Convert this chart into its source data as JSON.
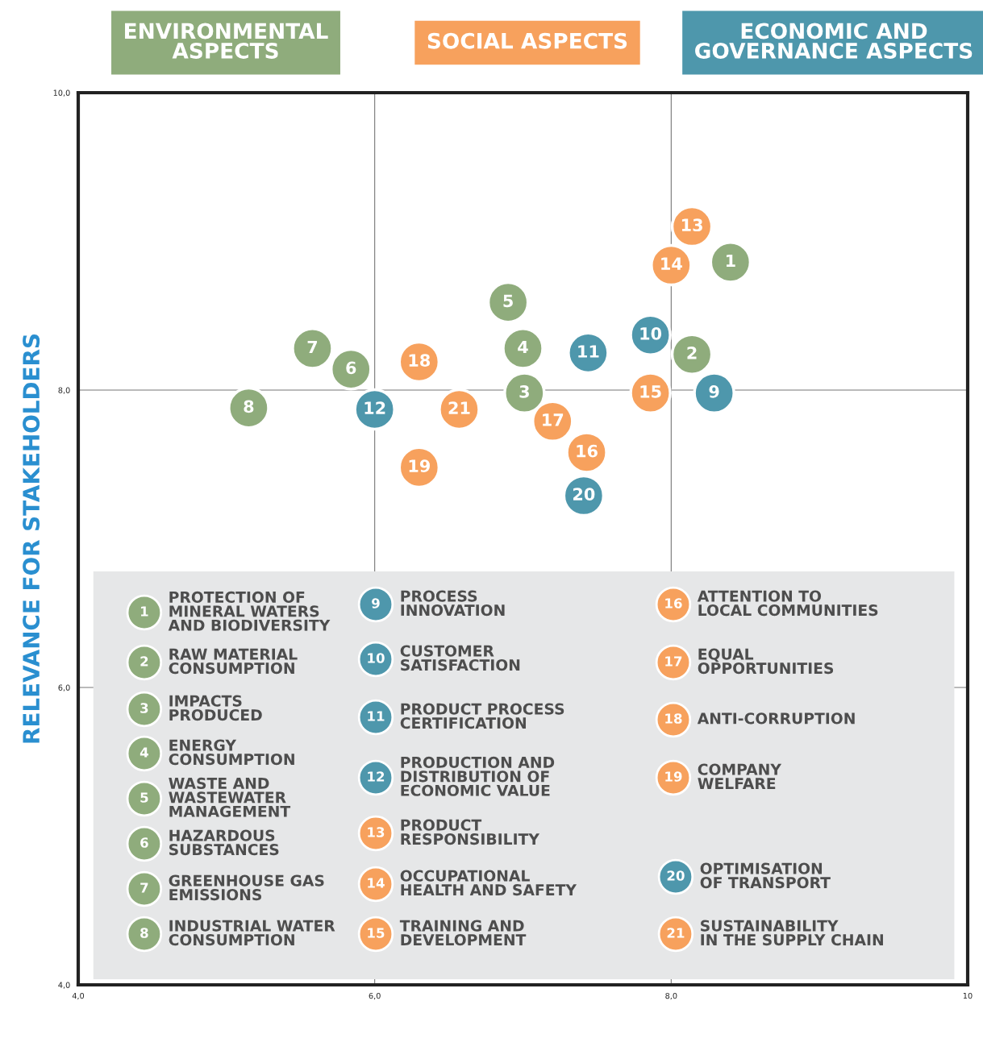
{
  "chart_data": {
    "type": "scatter",
    "ylabel": "RELEVANCE FOR STAKEHOLDERS",
    "xlim": [
      4,
      10
    ],
    "ylim": [
      4,
      10
    ],
    "xticks": [
      {
        "value": 4,
        "label": "4,0"
      },
      {
        "value": 6,
        "label": "6,0"
      },
      {
        "value": 8,
        "label": "8,0"
      },
      {
        "value": 10,
        "label": "10"
      }
    ],
    "yticks": [
      {
        "value": 4,
        "label": "4,0"
      },
      {
        "value": 6,
        "label": "6,0"
      },
      {
        "value": 8,
        "label": "8,0"
      },
      {
        "value": 10,
        "label": "10,0"
      }
    ],
    "grid": true,
    "legend": "top",
    "marker": "circle",
    "series": [
      {
        "name": "ENVIRONMENTAL\nASPECTS",
        "color": "#8fac7c",
        "x": [
          8.4,
          8.14,
          7.01,
          7.0,
          6.9,
          5.84,
          5.58,
          5.15
        ],
        "values": [
          8.86,
          8.24,
          7.98,
          8.28,
          8.59,
          8.14,
          8.28,
          7.88
        ]
      },
      {
        "name": "SOCIAL ASPECTS",
        "color": "#f7a15d",
        "x": [
          8.14,
          8.0,
          7.86,
          7.43,
          7.2,
          6.3,
          6.3,
          6.57
        ],
        "values": [
          9.1,
          8.84,
          7.98,
          7.58,
          7.79,
          8.19,
          7.48,
          7.87
        ]
      },
      {
        "name": "ECONOMIC AND\nGOVERNANCE ASPECTS",
        "color": "#4e97ac",
        "x": [
          8.29,
          7.86,
          7.44,
          6.0,
          7.41
        ],
        "values": [
          7.98,
          8.37,
          8.25,
          7.87,
          7.29
        ]
      }
    ],
    "annotations": [
      {
        "text": "1",
        "x": 8.4,
        "y": 8.86
      },
      {
        "text": "2",
        "x": 8.14,
        "y": 8.24
      },
      {
        "text": "3",
        "x": 7.01,
        "y": 7.98
      },
      {
        "text": "4",
        "x": 7.0,
        "y": 8.28
      },
      {
        "text": "5",
        "x": 6.9,
        "y": 8.59
      },
      {
        "text": "6",
        "x": 5.84,
        "y": 8.14
      },
      {
        "text": "7",
        "x": 5.58,
        "y": 8.28
      },
      {
        "text": "8",
        "x": 5.15,
        "y": 7.88
      },
      {
        "text": "13",
        "x": 8.14,
        "y": 9.1
      },
      {
        "text": "14",
        "x": 8.0,
        "y": 8.84
      },
      {
        "text": "15",
        "x": 7.86,
        "y": 7.98
      },
      {
        "text": "16",
        "x": 7.43,
        "y": 7.58
      },
      {
        "text": "17",
        "x": 7.2,
        "y": 7.79
      },
      {
        "text": "18",
        "x": 6.3,
        "y": 8.19
      },
      {
        "text": "19",
        "x": 6.3,
        "y": 7.48
      },
      {
        "text": "21",
        "x": 6.57,
        "y": 7.87
      },
      {
        "text": "9",
        "x": 8.29,
        "y": 7.98
      },
      {
        "text": "10",
        "x": 7.86,
        "y": 8.37
      },
      {
        "text": "11",
        "x": 7.44,
        "y": 8.25
      },
      {
        "text": "12",
        "x": 6.0,
        "y": 7.87
      },
      {
        "text": "20",
        "x": 7.41,
        "y": 7.29
      },
      "PROTECTION OF\nMINERAL WATERS\nAND BIODIVERSITY",
      "RAW MATERIAL\nCONSUMPTION",
      "IMPACTS\nPRODUCED",
      "ENERGY\nCONSUMPTION",
      "WASTE AND\nWASTEWATER\nMANAGEMENT",
      "HAZARDOUS\nSUBSTANCES",
      "GREENHOUSE GAS\nEMISSIONS",
      "INDUSTRIAL WATER\nCONSUMPTION",
      "PRODUCT\nRESPONSIBILITY",
      "OCCUPATIONAL\nHEALTH AND SAFETY",
      "TRAINING AND\nDEVELOPMENT",
      "ATTENTION TO\nLOCAL COMMUNITIES",
      "EQUAL\nOPPORTUNITIES",
      "ANTI-CORRUPTION",
      "COMPANY\nWELFARE",
      "SUSTAINABILITY\nIN THE SUPPLY CHAIN",
      "PROCESS\nINNOVATION",
      "CUSTOMER\nSATISFACTION",
      "PRODUCT PROCESS\nCERTIFICATION",
      "PRODUCTION AND\nDISTRIBUTION OF\nECONOMIC VALUE",
      "OPTIMISATION\nOF TRANSPORT"
    ]
  }
}
